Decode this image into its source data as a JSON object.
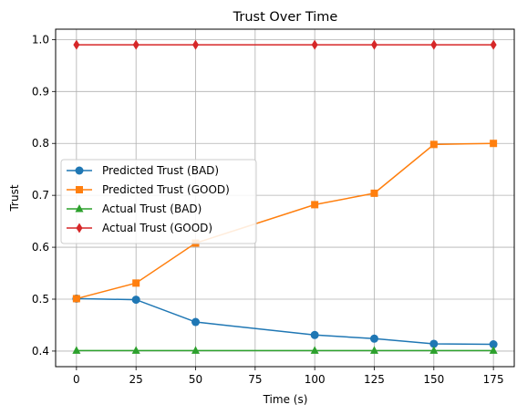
{
  "chart_data": {
    "type": "line",
    "title": "Trust Over Time",
    "xlabel": "Time (s)",
    "ylabel": "Trust",
    "x": [
      0,
      25,
      50,
      100,
      125,
      150,
      175
    ],
    "xlim": [
      -8.75,
      183.75
    ],
    "ylim": [
      0.37,
      1.02
    ],
    "xticks": [
      0,
      25,
      50,
      75,
      100,
      125,
      150,
      175
    ],
    "xtick_labels": [
      "0",
      "25",
      "50",
      "75",
      "100",
      "125",
      "150",
      "175"
    ],
    "yticks": [
      0.4,
      0.5,
      0.6,
      0.7,
      0.8,
      0.9,
      1.0
    ],
    "ytick_labels": [
      "0.4",
      "0.5",
      "0.6",
      "0.7",
      "0.8",
      "0.9",
      "1.0"
    ],
    "grid": true,
    "legend_position": "center-left",
    "series": [
      {
        "name": "Predicted Trust (BAD)",
        "color": "#1f77b4",
        "marker": "circle",
        "values": [
          0.501,
          0.499,
          0.456,
          0.431,
          0.424,
          0.414,
          0.413
        ]
      },
      {
        "name": "Predicted Trust (GOOD)",
        "color": "#ff7f0e",
        "marker": "square",
        "values": [
          0.501,
          0.531,
          0.608,
          0.682,
          0.704,
          0.798,
          0.8
        ]
      },
      {
        "name": "Actual Trust (BAD)",
        "color": "#2ca02c",
        "marker": "triangle",
        "values": [
          0.401,
          0.401,
          0.401,
          0.401,
          0.401,
          0.401,
          0.401
        ]
      },
      {
        "name": "Actual Trust (GOOD)",
        "color": "#d62728",
        "marker": "diamond",
        "values": [
          0.99,
          0.99,
          0.99,
          0.99,
          0.99,
          0.99,
          0.99
        ]
      }
    ]
  }
}
